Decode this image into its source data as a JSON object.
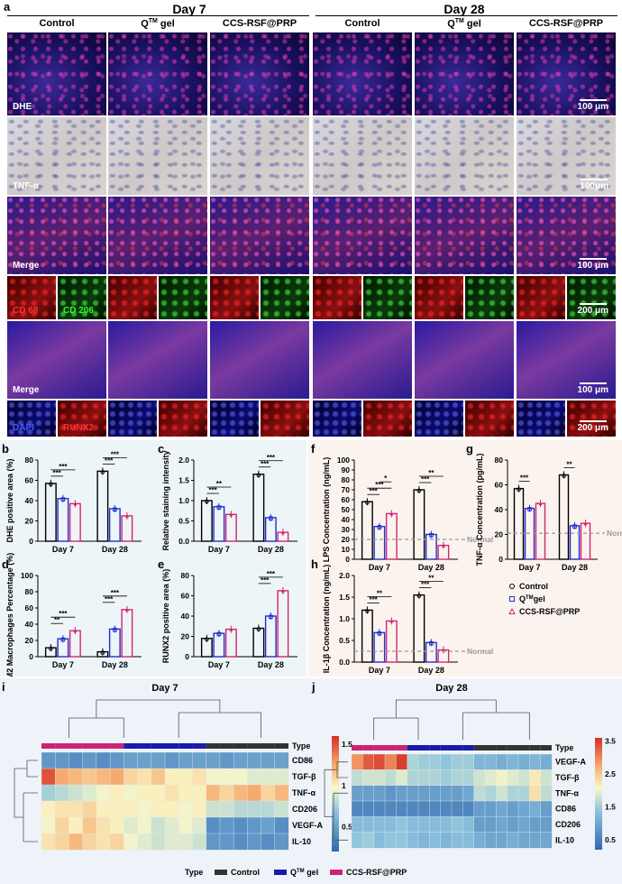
{
  "panel_a": {
    "letter": "a",
    "groups": [
      "Day 7",
      "Day 28"
    ],
    "columns": [
      "Control",
      "Q",
      "CCS-RSF@PRP",
      "Control",
      "Q",
      "CCS-RSF@PRP"
    ],
    "col_sup": "TM",
    "col_suffix": " gel",
    "rows": [
      {
        "label": "DHE",
        "scale": "100 μm"
      },
      {
        "label": "TNF-α",
        "scale": "100μm"
      },
      {
        "label": "Merge",
        "scale": "100 μm"
      },
      {
        "label_a": "CD 68",
        "label_b": "CD 206",
        "scale": "200 μm"
      },
      {
        "label": "Merge",
        "scale": "100 μm"
      },
      {
        "label_a": "DAPI",
        "label_b": "RUNX2",
        "scale": "200 μm"
      }
    ]
  },
  "bar_charts": [
    {
      "letter": "b",
      "ylabel": "DHE positive area (%)",
      "ylim": [
        0,
        80
      ],
      "ticks": [
        0,
        20,
        40,
        60,
        80
      ],
      "categories": [
        "Day 7",
        "Day 28"
      ],
      "series": [
        {
          "values": [
            57,
            69
          ]
        },
        {
          "values": [
            42,
            32
          ]
        },
        {
          "values": [
            37,
            25
          ]
        }
      ],
      "sig": [
        [
          "***",
          "***"
        ],
        [
          "***",
          "***"
        ]
      ]
    },
    {
      "letter": "c",
      "ylabel": "Relative staining intensity",
      "ylim": [
        0,
        2.0
      ],
      "ticks": [
        0.0,
        0.5,
        1.0,
        1.5,
        2.0
      ],
      "categories": [
        "Day 7",
        "Day 28"
      ],
      "series": [
        {
          "values": [
            1.0,
            1.65
          ]
        },
        {
          "values": [
            0.85,
            0.58
          ]
        },
        {
          "values": [
            0.66,
            0.22
          ]
        }
      ],
      "sig": [
        [
          "***",
          "**"
        ],
        [
          "***",
          "***"
        ]
      ]
    },
    {
      "letter": "d",
      "ylabel": "M2 Macrophages Percentage (%)",
      "ylim": [
        0,
        100
      ],
      "ticks": [
        0,
        20,
        40,
        60,
        80,
        100
      ],
      "categories": [
        "Day 7",
        "Day 28"
      ],
      "series": [
        {
          "values": [
            11,
            6
          ]
        },
        {
          "values": [
            22,
            34
          ]
        },
        {
          "values": [
            32,
            58
          ]
        }
      ],
      "sig": [
        [
          "**",
          "***"
        ],
        [
          "***",
          "***"
        ]
      ]
    },
    {
      "letter": "e",
      "ylabel": "RUNX2 positive area (%)",
      "ylim": [
        0,
        80
      ],
      "ticks": [
        0,
        20,
        40,
        60,
        80
      ],
      "categories": [
        "Day 7",
        "Day 28"
      ],
      "series": [
        {
          "values": [
            18,
            28
          ]
        },
        {
          "values": [
            23,
            40
          ]
        },
        {
          "values": [
            27,
            65
          ]
        }
      ],
      "sig": [
        [
          "",
          ""
        ],
        [
          "***",
          "***"
        ]
      ]
    },
    {
      "letter": "f",
      "ylabel": "LPS Concentration (ng/mL)",
      "ylim": [
        0,
        100
      ],
      "ticks": [
        0,
        10,
        20,
        30,
        40,
        50,
        60,
        70,
        80,
        90,
        100
      ],
      "categories": [
        "Day 7",
        "Day 28"
      ],
      "series": [
        {
          "values": [
            58,
            70
          ]
        },
        {
          "values": [
            33,
            25
          ]
        },
        {
          "values": [
            46,
            14
          ]
        }
      ],
      "normal": 20,
      "normal_label": "Normal",
      "sig": [
        [
          "***",
          "***",
          "*"
        ],
        [
          "***",
          "**",
          ""
        ]
      ]
    },
    {
      "letter": "g",
      "ylabel": "TNF-α Concentration (pg/mL)",
      "ylim": [
        0,
        80
      ],
      "ticks": [
        0,
        20,
        40,
        60,
        80
      ],
      "categories": [
        "Day 7",
        "Day 28"
      ],
      "series": [
        {
          "values": [
            57,
            68
          ]
        },
        {
          "values": [
            41,
            27
          ]
        },
        {
          "values": [
            45,
            29
          ]
        }
      ],
      "normal": 21,
      "normal_label": "Normal",
      "sig": [
        [
          "***",
          ""
        ],
        [
          "**",
          ""
        ]
      ]
    },
    {
      "letter": "h",
      "ylabel": "IL-1β Concentration (ng/mL)",
      "ylim": [
        0,
        2.0
      ],
      "ticks": [
        0.0,
        0.5,
        1.0,
        1.5,
        2.0
      ],
      "categories": [
        "Day 7",
        "Day 28"
      ],
      "series": [
        {
          "values": [
            1.2,
            1.55
          ]
        },
        {
          "values": [
            0.68,
            0.45
          ]
        },
        {
          "values": [
            0.95,
            0.28
          ]
        }
      ],
      "normal": 0.25,
      "normal_label": "Normal",
      "sig": [
        [
          "***",
          "**"
        ],
        [
          "***",
          "**"
        ]
      ]
    }
  ],
  "legend": {
    "items": [
      {
        "symbol": "circle",
        "label": "Control",
        "color": "#000000"
      },
      {
        "symbol": "square",
        "label": "Q",
        "sup": "TM",
        "suffix": "gel",
        "color": "#1f2fcf"
      },
      {
        "symbol": "triangle",
        "label": "CCS-RSF@PRP",
        "color": "#d6246e"
      }
    ]
  },
  "colors": {
    "control": "#000000",
    "q": "#1f2fcf",
    "ccs": "#d6246e",
    "normal": "#999999"
  },
  "heatmaps": [
    {
      "letter": "i",
      "title": "Day 7",
      "type_label": "Type",
      "rows": [
        "CD86",
        "TGF-β",
        "TNF-α",
        "CD206",
        "VEGF-A",
        "IL-10"
      ],
      "col_groups": [
        "ccs",
        "ccs",
        "ccs",
        "ccs",
        "ccs",
        "ccs",
        "q",
        "q",
        "q",
        "q",
        "q",
        "q",
        "control",
        "control",
        "control",
        "control",
        "control",
        "control"
      ],
      "scale_ticks": [
        0.5,
        1,
        1.5
      ],
      "vmin": 0.2,
      "vmax": 1.6,
      "values": [
        [
          0.45,
          0.45,
          0.4,
          0.45,
          0.4,
          0.45,
          0.5,
          0.5,
          0.5,
          0.45,
          0.5,
          0.5,
          0.5,
          0.45,
          0.5,
          0.5,
          0.5,
          0.5
        ],
        [
          1.5,
          1.25,
          1.2,
          1.15,
          1.2,
          1.25,
          1.1,
          1.05,
          1.15,
          1.0,
          1.0,
          1.05,
          0.95,
          0.95,
          0.95,
          0.9,
          0.9,
          0.9
        ],
        [
          0.75,
          0.8,
          0.85,
          0.9,
          0.95,
          1.0,
          0.95,
          1.0,
          1.0,
          1.05,
          1.0,
          1.0,
          1.2,
          1.1,
          1.2,
          1.25,
          1.1,
          1.2
        ],
        [
          1.0,
          1.05,
          1.05,
          1.1,
          1.0,
          1.0,
          1.0,
          0.95,
          1.0,
          1.0,
          0.95,
          1.0,
          0.85,
          0.85,
          0.8,
          0.8,
          0.8,
          0.85
        ],
        [
          0.95,
          1.1,
          1.0,
          1.15,
          1.05,
          1.0,
          0.9,
          0.95,
          0.85,
          0.9,
          0.95,
          0.9,
          0.4,
          0.45,
          0.4,
          0.45,
          0.5,
          0.4
        ],
        [
          1.05,
          1.1,
          1.2,
          1.1,
          1.05,
          1.1,
          0.95,
          0.9,
          0.85,
          0.9,
          0.9,
          0.85,
          0.45,
          0.45,
          0.4,
          0.45,
          0.4,
          0.45
        ]
      ]
    },
    {
      "letter": "j",
      "title": "Day 28",
      "type_label": "Type",
      "rows": [
        "VEGF-A",
        "TGF-β",
        "TNF-α",
        "CD86",
        "CD206",
        "IL-10"
      ],
      "col_groups": [
        "ccs",
        "ccs",
        "ccs",
        "ccs",
        "ccs",
        "q",
        "q",
        "q",
        "q",
        "q",
        "q",
        "control",
        "control",
        "control",
        "control",
        "control",
        "control",
        "control"
      ],
      "scale_ticks": [
        0.5,
        1.5,
        2.5,
        3.5
      ],
      "vmin": 0.2,
      "vmax": 3.6,
      "values": [
        [
          2.9,
          3.3,
          3.4,
          3.0,
          3.5,
          1.6,
          1.5,
          1.5,
          1.4,
          1.5,
          1.5,
          1.2,
          1.2,
          1.1,
          1.2,
          1.1,
          1.2,
          1.1
        ],
        [
          1.7,
          1.8,
          1.8,
          1.7,
          1.9,
          1.6,
          1.6,
          1.6,
          1.5,
          1.6,
          1.6,
          1.8,
          1.9,
          2.0,
          1.9,
          1.8,
          2.2,
          1.8
        ],
        [
          0.9,
          0.9,
          0.9,
          0.8,
          0.9,
          0.9,
          0.9,
          0.9,
          0.9,
          0.9,
          1.0,
          1.7,
          1.6,
          1.8,
          1.6,
          1.6,
          2.3,
          1.7
        ],
        [
          0.6,
          0.6,
          0.6,
          0.6,
          0.6,
          0.6,
          0.6,
          0.6,
          0.6,
          0.6,
          0.6,
          0.9,
          0.9,
          1.0,
          0.9,
          1.0,
          1.1,
          0.9
        ],
        [
          1.3,
          1.3,
          1.3,
          1.3,
          1.4,
          1.3,
          1.3,
          1.3,
          1.3,
          1.4,
          1.3,
          0.9,
          0.9,
          1.0,
          0.9,
          1.0,
          0.9,
          0.9
        ],
        [
          1.4,
          1.5,
          1.3,
          1.4,
          1.4,
          1.3,
          1.2,
          1.3,
          1.2,
          1.3,
          1.3,
          1.1,
          1.0,
          1.0,
          1.1,
          1.0,
          1.0,
          1.0
        ]
      ]
    }
  ],
  "bottom_legend": {
    "title": "Type",
    "items": [
      {
        "label": "Control",
        "color": "#333333"
      },
      {
        "label": "Q",
        "sup": "TM",
        "suffix": " gel",
        "color": "#1a1aaa"
      },
      {
        "label": "CCS-RSF@PRP",
        "color": "#cc2277"
      }
    ]
  }
}
